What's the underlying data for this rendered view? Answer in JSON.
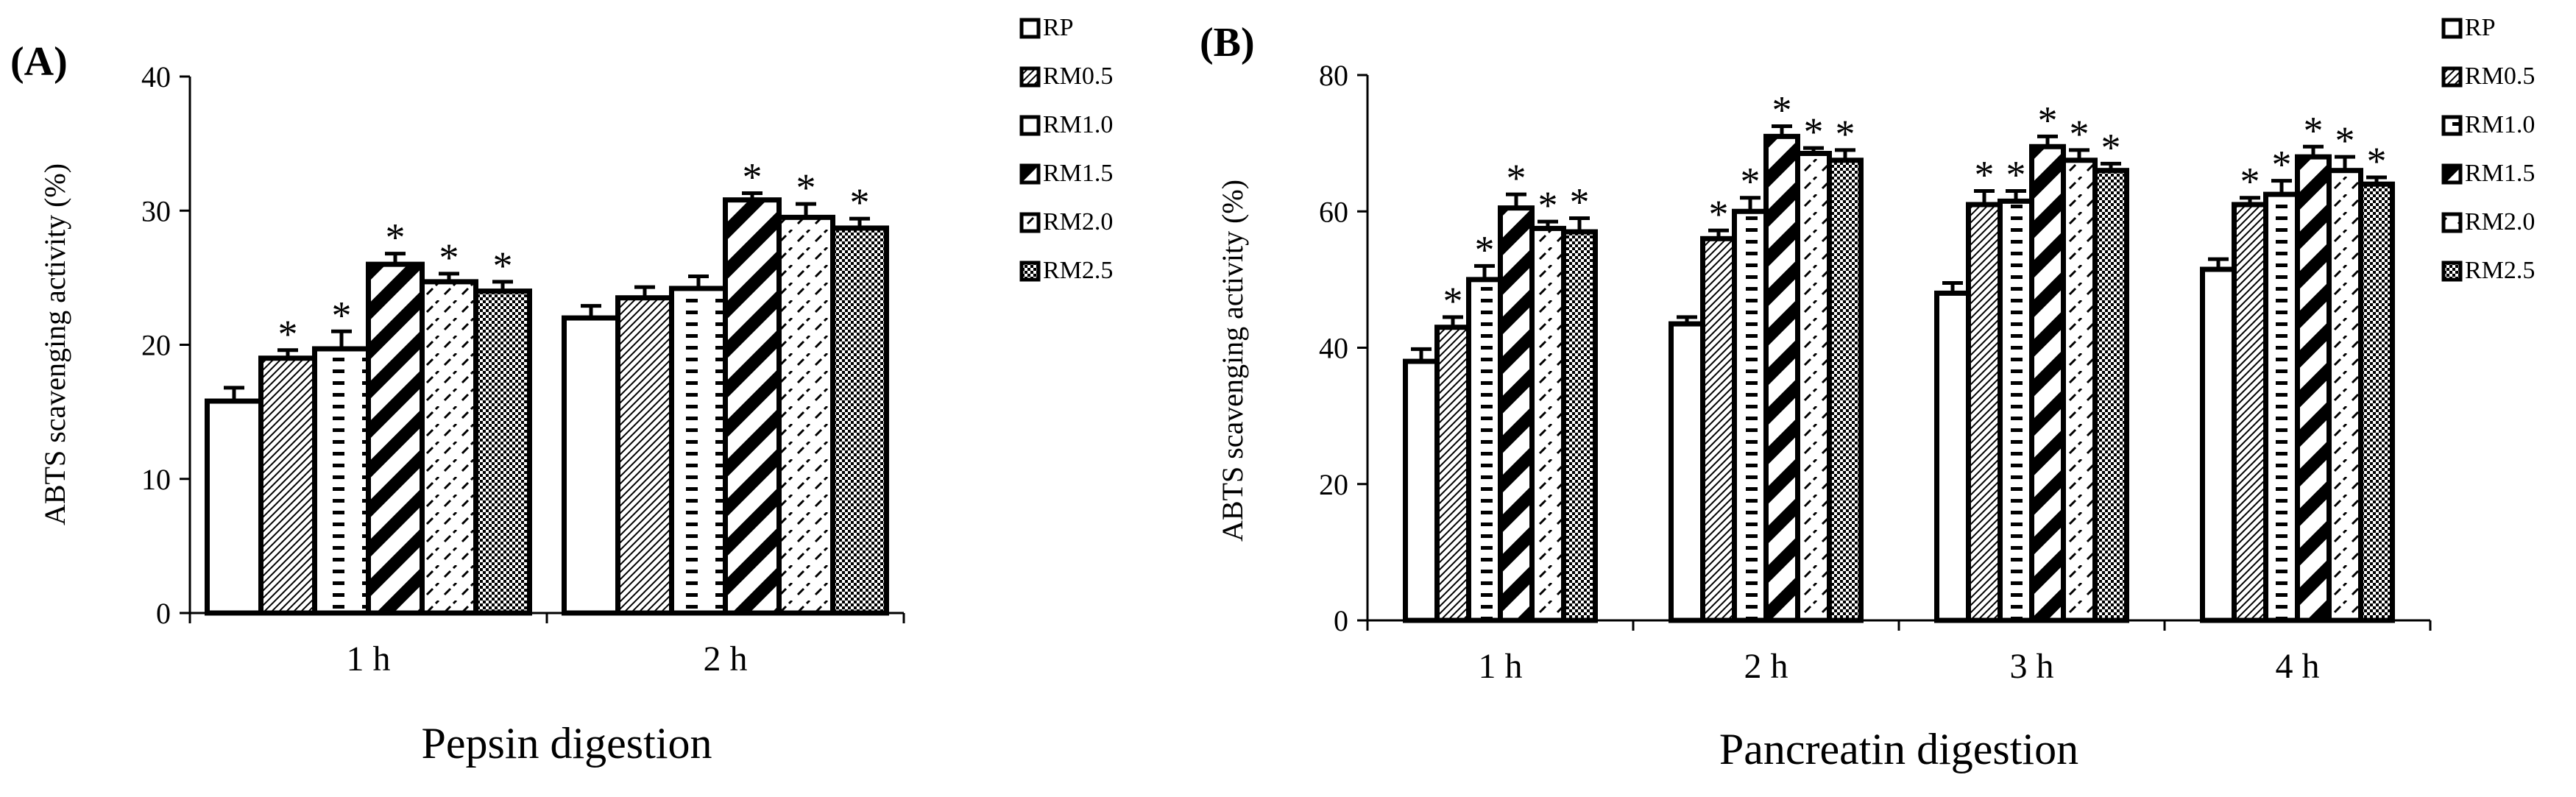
{
  "chart_data": [
    {
      "panel": "(A)",
      "type": "bar",
      "categories": [
        "1 h",
        "2 h"
      ],
      "xlabel": "Pepsin digestion",
      "ylabel": "ABTS scavenging activity (%)",
      "ylim": [
        0,
        40
      ],
      "yticks": [
        "0",
        "10",
        "20",
        "30",
        "40"
      ],
      "legend": [
        "RP",
        "RM0.5",
        "RM1.0",
        "RM1.5",
        "RM2.0",
        "RM2.5"
      ],
      "series": [
        {
          "name": "RP",
          "values": [
            15.8,
            22.0
          ],
          "errors": [
            1.0,
            0.9
          ],
          "significant": [
            false,
            false
          ]
        },
        {
          "name": "RM0.5",
          "values": [
            19.0,
            23.5
          ],
          "errors": [
            0.6,
            0.8
          ],
          "significant": [
            true,
            false
          ]
        },
        {
          "name": "RM1.0",
          "values": [
            19.7,
            24.2
          ],
          "errors": [
            1.3,
            0.9
          ],
          "significant": [
            true,
            false
          ]
        },
        {
          "name": "RM1.5",
          "values": [
            26.0,
            30.8
          ],
          "errors": [
            0.8,
            0.5
          ],
          "significant": [
            true,
            true
          ]
        },
        {
          "name": "RM2.0",
          "values": [
            24.7,
            29.5
          ],
          "errors": [
            0.6,
            1.0
          ],
          "significant": [
            true,
            true
          ]
        },
        {
          "name": "RM2.5",
          "values": [
            24.0,
            28.7
          ],
          "errors": [
            0.7,
            0.7
          ],
          "significant": [
            true,
            true
          ]
        }
      ]
    },
    {
      "panel": "(B)",
      "type": "bar",
      "categories": [
        "1 h",
        "2 h",
        "3 h",
        "4 h"
      ],
      "xlabel": "Pancreatin digestion",
      "ylabel": "ABTS scavenging activity (%)",
      "ylim": [
        0,
        80
      ],
      "yticks": [
        "0",
        "20",
        "40",
        "60",
        "80"
      ],
      "legend": [
        "RP",
        "RM0.5",
        "RM1.0",
        "RM1.5",
        "RM2.0",
        "RM2.5"
      ],
      "series": [
        {
          "name": "RP",
          "values": [
            38.0,
            43.5,
            48.0,
            51.5
          ],
          "errors": [
            1.8,
            1.0,
            1.5,
            1.5
          ],
          "significant": [
            false,
            false,
            false,
            false
          ]
        },
        {
          "name": "RM0.5",
          "values": [
            43.0,
            56.0,
            61.0,
            61.0
          ],
          "errors": [
            1.5,
            1.2,
            2.0,
            1.0
          ],
          "significant": [
            true,
            true,
            true,
            true
          ]
        },
        {
          "name": "RM1.0",
          "values": [
            50.0,
            60.0,
            61.5,
            62.5
          ],
          "errors": [
            2.0,
            2.0,
            1.5,
            2.0
          ],
          "significant": [
            true,
            true,
            true,
            true
          ]
        },
        {
          "name": "RM1.5",
          "values": [
            60.5,
            71.0,
            69.5,
            68.0
          ],
          "errors": [
            2.0,
            1.5,
            1.5,
            1.5
          ],
          "significant": [
            true,
            true,
            true,
            true
          ]
        },
        {
          "name": "RM2.0",
          "values": [
            57.5,
            68.5,
            67.5,
            66.0
          ],
          "errors": [
            1.0,
            0.8,
            1.5,
            2.0
          ],
          "significant": [
            true,
            true,
            true,
            true
          ]
        },
        {
          "name": "RM2.5",
          "values": [
            57.0,
            67.5,
            66.0,
            64.0
          ],
          "errors": [
            2.0,
            1.5,
            1.0,
            1.0
          ],
          "significant": [
            true,
            true,
            true,
            true
          ]
        }
      ]
    }
  ],
  "significance_marker": "*",
  "colors": {
    "ink": "#000000",
    "background": "#ffffff"
  }
}
